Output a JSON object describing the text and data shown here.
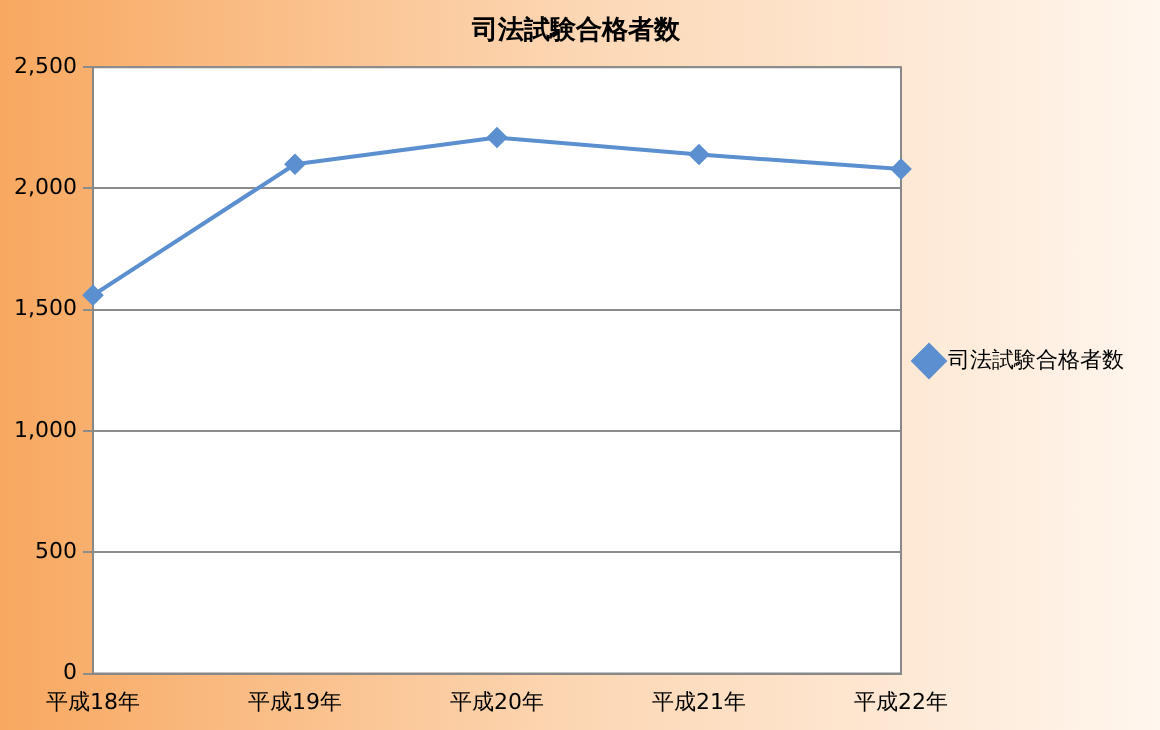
{
  "chart_data": {
    "type": "line",
    "title": "司法試験合格者数",
    "categories": [
      "平成18年",
      "平成19年",
      "平成20年",
      "平成21年",
      "平成22年"
    ],
    "series": [
      {
        "name": "司法試験合格者数",
        "color": "#5b8fd0",
        "values": [
          1560,
          2100,
          2210,
          2140,
          2080
        ]
      }
    ],
    "ylim": [
      0,
      2500
    ],
    "yticks": [
      {
        "value": 0,
        "label": "0"
      },
      {
        "value": 500,
        "label": "500"
      },
      {
        "value": 1000,
        "label": "1,000"
      },
      {
        "value": 1500,
        "label": "1,500"
      },
      {
        "value": 2000,
        "label": "2,000"
      },
      {
        "value": 2500,
        "label": "2,500"
      }
    ],
    "grid": "y",
    "legend": "right",
    "marker": "diamond",
    "line_style": "solid"
  }
}
